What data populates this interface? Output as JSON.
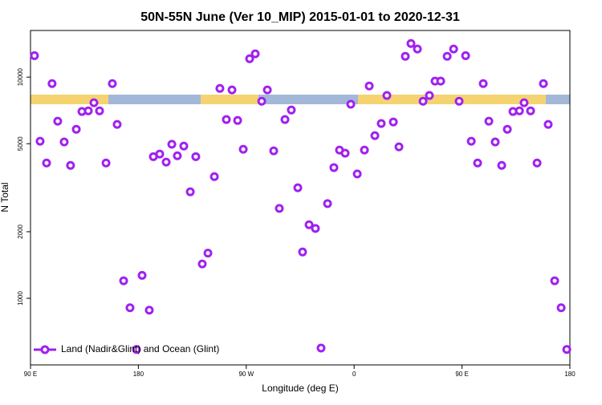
{
  "chart_data": {
    "type": "scatter",
    "title": "50N-55N June (Ver 10_MIP)   2015-01-01 to 2020-12-31",
    "x_label": "Longitude (deg E)",
    "y_label": "N Total",
    "log_y": true,
    "legend_position": "bottom-left",
    "xlim": [
      90,
      540
    ],
    "ylim": [
      500,
      16250
    ],
    "xticks": [
      {
        "value": 90,
        "label": "90 E"
      },
      {
        "value": 180,
        "label": "180"
      },
      {
        "value": 270,
        "label": "90 W"
      },
      {
        "value": 360,
        "label": "0"
      },
      {
        "value": 450,
        "label": "90 E"
      },
      {
        "value": 540,
        "label": "180"
      }
    ],
    "yticks": [
      1000,
      2000,
      5000,
      10000
    ],
    "series": [
      {
        "name": "Land (Nadir&Glint) and Ocean (Glint)",
        "color": "#a020f0",
        "x": [
          93.3,
          98.0,
          103.4,
          108.0,
          112.7,
          118.1,
          123.4,
          128.2,
          132.9,
          138.2,
          142.9,
          147.6,
          153.0,
          158.3,
          162.3,
          167.7,
          173.0,
          178.4,
          183.1,
          189.1,
          192.5,
          197.8,
          203.2,
          207.9,
          212.5,
          217.9,
          223.3,
          227.9,
          233.3,
          238.0,
          243.4,
          248.0,
          253.4,
          258.1,
          262.8,
          267.5,
          272.8,
          277.5,
          282.9,
          287.6,
          292.9,
          297.6,
          302.3,
          307.6,
          313.0,
          317.0,
          322.4,
          327.7,
          332.4,
          337.8,
          343.1,
          347.8,
          352.5,
          357.2,
          362.6,
          368.6,
          372.6,
          377.3,
          382.6,
          387.3,
          392.7,
          397.4,
          402.7,
          407.4,
          412.8,
          417.5,
          422.8,
          427.5,
          432.2,
          437.6,
          443.0,
          447.6,
          453.0,
          457.7,
          463.0,
          467.7,
          472.4,
          477.7,
          483.1,
          487.8,
          492.5,
          497.9,
          501.8,
          507.2,
          512.6,
          517.9,
          521.9,
          527.3,
          532.7,
          537.4
        ],
        "values": [
          12500,
          5130,
          4090,
          9350,
          6320,
          5090,
          3990,
          5810,
          6990,
          7040,
          7660,
          7040,
          4090,
          9350,
          6110,
          1200,
          906,
          587,
          1270,
          884,
          4370,
          4490,
          4130,
          4970,
          4410,
          4880,
          3030,
          4370,
          1430,
          1600,
          3550,
          8890,
          6430,
          8750,
          6370,
          4720,
          12110,
          12740,
          7780,
          8750,
          4640,
          2550,
          6430,
          7100,
          3160,
          1620,
          2150,
          2070,
          596,
          2680,
          3900,
          4680,
          4530,
          7540,
          3650,
          4680,
          9120,
          5440,
          6170,
          8260,
          6270,
          4840,
          12420,
          14190,
          13400,
          7780,
          8260,
          9590,
          9590,
          12420,
          13400,
          7780,
          12500,
          5130,
          4090,
          9350,
          6320,
          5090,
          3990,
          5810,
          6990,
          7040,
          7660,
          7040,
          4090,
          9350,
          6110,
          1200,
          906,
          587
        ]
      }
    ]
  }
}
